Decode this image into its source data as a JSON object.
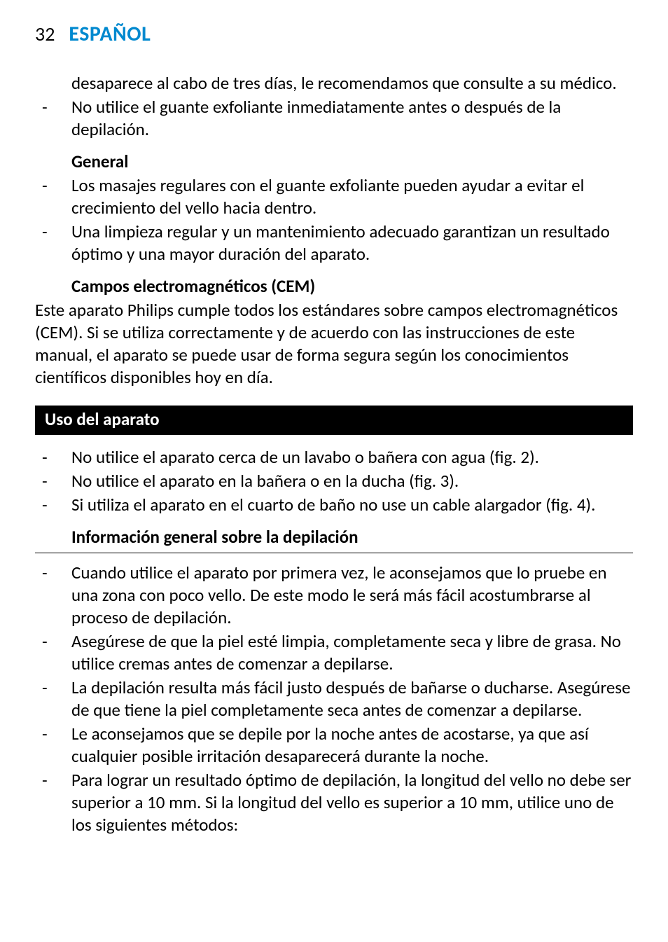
{
  "page": {
    "number": "32",
    "language": "ESPAÑOL"
  },
  "colors": {
    "brand_blue": "#0089cf",
    "text": "#000000",
    "bar_bg": "#000000",
    "bar_text": "#ffffff",
    "page_bg": "#ffffff"
  },
  "intro_trailing_para": "desaparece al cabo de tres días, le recomendamos que consulte a su médico.",
  "intro_bullets": [
    "No utilice el guante exfoliante inmediatamente antes o después de la depilación."
  ],
  "general": {
    "heading": "General",
    "bullets": [
      "Los masajes regulares con el guante exfoliante pueden ayudar a evitar el crecimiento del vello hacia dentro.",
      "Una limpieza regular y un mantenimiento adecuado garantizan un resultado óptimo y una mayor duración del aparato."
    ]
  },
  "cem": {
    "heading": "Campos electromagnéticos (CEM)",
    "para": "Este aparato Philips cumple todos los estándares sobre campos electromagnéticos (CEM). Si se utiliza correctamente y de acuerdo con las instrucciones de este manual, el aparato se puede usar de forma segura según los conocimientos científicos disponibles hoy en día."
  },
  "uso": {
    "heading": "Uso del aparato",
    "bullets": [
      "No utilice el aparato cerca de un lavabo o bañera con agua (fig. 2).",
      "No utilice el aparato en la bañera o en la ducha (fig. 3).",
      "Si utiliza el aparato en el cuarto de baño no use un cable alargador (fig. 4)."
    ]
  },
  "info_general": {
    "heading": "Información general sobre la depilación",
    "bullets": [
      "Cuando utilice el aparato por primera vez, le aconsejamos que lo pruebe en una zona con poco vello. De este modo le será más fácil acostumbrarse al proceso de depilación.",
      "Asegúrese de que la piel esté limpia, completamente seca y libre de grasa. No utilice cremas antes de comenzar a depilarse.",
      "La depilación resulta más fácil justo después de bañarse o ducharse. Asegúrese de que tiene la piel completamente seca antes de comenzar a depilarse.",
      "Le aconsejamos que se depile por la noche antes de acostarse, ya que así cualquier posible irritación desaparecerá durante la noche.",
      "Para lograr un resultado óptimo de depilación, la longitud del vello no debe ser superior a 10 mm. Si la longitud del vello es superior a 10 mm, utilice uno de los siguientes métodos:"
    ]
  }
}
